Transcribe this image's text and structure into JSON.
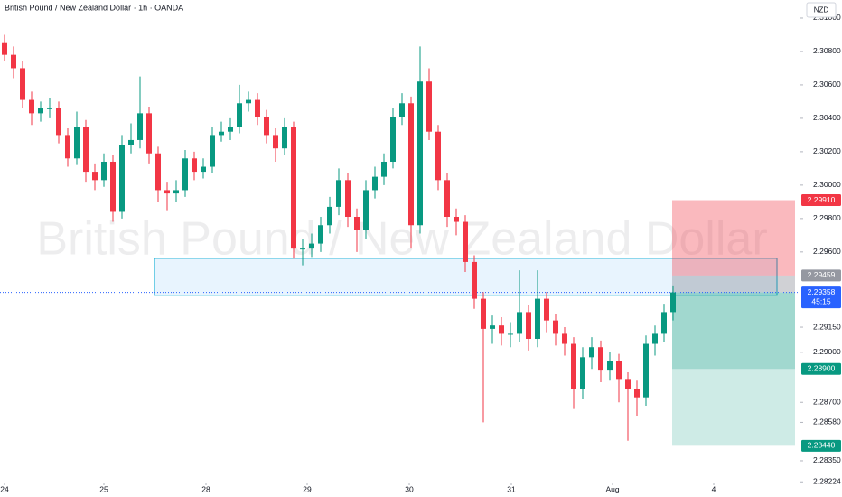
{
  "chart_data": {
    "type": "candlestick",
    "title": "British Pound / New Zealand Dollar · 1h · OANDA",
    "watermark": "British Pound / New Zealand Dollar",
    "currency": "NZD",
    "up_color": "#089981",
    "down_color": "#f23645",
    "open": [
      2.3085,
      2.3078,
      2.307,
      2.3051,
      2.3043,
      2.3046,
      2.3046,
      2.303,
      2.3016,
      2.3035,
      2.3008,
      2.3003,
      2.3014,
      2.2984,
      2.3024,
      2.3027,
      2.3043,
      2.3019,
      2.2997,
      2.2995,
      2.2997,
      2.3016,
      2.3008,
      2.3011,
      2.303,
      2.3032,
      2.3035,
      2.3049,
      2.3051,
      2.3041,
      2.303,
      2.3022,
      2.3035,
      2.2962,
      2.2962,
      2.2965,
      2.2976,
      2.2987,
      2.3003,
      2.2981,
      2.2973,
      2.2997,
      2.3005,
      2.3014,
      2.3041,
      2.3049,
      2.2976,
      2.3062,
      2.3032,
      2.3003,
      2.2981,
      2.2978,
      2.2954,
      2.2932,
      2.2914,
      2.2916,
      2.2911,
      2.2911,
      2.2924,
      2.2908,
      2.2932,
      2.2919,
      2.2911,
      2.2905,
      2.2878,
      2.2897,
      2.2903,
      2.2889,
      2.2895,
      2.2884,
      2.2878,
      2.2873,
      2.2905,
      2.2911,
      2.2924
    ],
    "high": [
      2.309,
      2.3083,
      2.3074,
      2.3056,
      2.305,
      2.3052,
      2.305,
      2.3034,
      2.3044,
      2.3039,
      2.3013,
      2.3019,
      2.3018,
      2.303,
      2.3037,
      2.3065,
      2.3047,
      2.3023,
      2.3002,
      2.3003,
      2.3021,
      2.302,
      2.3016,
      2.3035,
      2.3038,
      2.304,
      2.306,
      2.3056,
      2.3055,
      2.3045,
      2.3034,
      2.304,
      2.3038,
      2.2968,
      2.2971,
      2.2981,
      2.2993,
      2.301,
      2.3007,
      2.2986,
      2.3003,
      2.3011,
      2.3019,
      2.3046,
      2.3055,
      2.3053,
      2.3083,
      2.307,
      2.3036,
      2.3007,
      2.2986,
      2.2982,
      2.2958,
      2.2936,
      2.2922,
      2.2921,
      2.2918,
      2.2949,
      2.2928,
      2.2949,
      2.2936,
      2.2923,
      2.2915,
      2.2909,
      2.2903,
      2.2909,
      2.2907,
      2.29,
      2.2899,
      2.2888,
      2.2883,
      2.291,
      2.2916,
      2.2929,
      2.294
    ],
    "low": [
      2.3074,
      2.3064,
      2.3046,
      2.3036,
      2.3038,
      2.304,
      2.3025,
      2.3011,
      2.3012,
      2.3002,
      2.2997,
      2.2999,
      2.2978,
      2.298,
      2.3019,
      2.3022,
      2.3013,
      2.299,
      2.2985,
      2.299,
      2.2993,
      2.3003,
      2.3004,
      2.3007,
      2.3026,
      2.3027,
      2.3031,
      2.3044,
      2.3036,
      2.3025,
      2.3014,
      2.3018,
      2.2956,
      2.2952,
      2.2957,
      2.296,
      2.2971,
      2.2982,
      2.2975,
      2.296,
      2.2968,
      2.2992,
      2.3,
      2.301,
      2.3036,
      2.2962,
      2.2971,
      2.3027,
      2.2997,
      2.2975,
      2.297,
      2.2948,
      2.2926,
      2.2858,
      2.2905,
      2.2904,
      2.2903,
      2.2906,
      2.2901,
      2.2903,
      2.2912,
      2.2904,
      2.2898,
      2.2866,
      2.2872,
      2.289,
      2.2882,
      2.2883,
      2.287,
      2.2847,
      2.2862,
      2.2868,
      2.2898,
      2.2906,
      2.2919
    ],
    "close": [
      2.3078,
      2.307,
      2.3051,
      2.3043,
      2.3046,
      2.3046,
      2.303,
      2.3016,
      2.3035,
      2.3008,
      2.3003,
      2.3014,
      2.2984,
      2.3024,
      2.3027,
      2.3043,
      2.3019,
      2.2997,
      2.2995,
      2.2997,
      2.3016,
      2.3008,
      2.3011,
      2.303,
      2.3032,
      2.3035,
      2.3049,
      2.3051,
      2.3041,
      2.303,
      2.3022,
      2.3035,
      2.2962,
      2.2962,
      2.2965,
      2.2976,
      2.2987,
      2.3003,
      2.2981,
      2.2973,
      2.2997,
      2.3005,
      2.3014,
      2.3041,
      2.3049,
      2.2976,
      2.3062,
      2.3032,
      2.3003,
      2.2981,
      2.2978,
      2.2954,
      2.2932,
      2.2914,
      2.2916,
      2.2911,
      2.2911,
      2.2924,
      2.2908,
      2.2932,
      2.2919,
      2.2911,
      2.2905,
      2.2878,
      2.2897,
      2.2903,
      2.2889,
      2.2895,
      2.2884,
      2.2878,
      2.2873,
      2.2905,
      2.2911,
      2.2924,
      2.29358
    ],
    "xlim": [
      -0.5,
      88
    ],
    "xticks": [
      {
        "value": 0,
        "label": "24"
      },
      {
        "value": 11,
        "label": "25"
      },
      {
        "value": 22.3,
        "label": "28"
      },
      {
        "value": 33.5,
        "label": "29"
      },
      {
        "value": 44.8,
        "label": "30"
      },
      {
        "value": 56.1,
        "label": "31"
      },
      {
        "value": 67.3,
        "label": "Aug"
      },
      {
        "value": 78.5,
        "label": "4"
      }
    ],
    "ylim": [
      2.2822,
      2.31108
    ],
    "yticks": [
      {
        "value": 2.31,
        "label": "2.31000"
      },
      {
        "value": 2.308,
        "label": "2.30800"
      },
      {
        "value": 2.306,
        "label": "2.30600"
      },
      {
        "value": 2.304,
        "label": "2.30400"
      },
      {
        "value": 2.302,
        "label": "2.30200"
      },
      {
        "value": 2.3,
        "label": "2.30000"
      },
      {
        "value": 2.298,
        "label": "2.29800"
      },
      {
        "value": 2.296,
        "label": "2.29600"
      },
      {
        "value": 2.2915,
        "label": "2.29150"
      },
      {
        "value": 2.29,
        "label": "2.29000"
      },
      {
        "value": 2.287,
        "label": "2.28700"
      },
      {
        "value": 2.2858,
        "label": "2.28580"
      },
      {
        "value": 2.2835,
        "label": "2.28350"
      },
      {
        "value": 2.28224,
        "label": "2.28224"
      }
    ],
    "zone": {
      "x": [
        16.6,
        85.5
      ],
      "y": [
        2.29341,
        2.29562
      ],
      "color": "#22b5d6"
    },
    "position": {
      "x": [
        73.9,
        87.5
      ],
      "stop": 2.2991,
      "entry": 2.29459,
      "target": 2.2844
    },
    "price_labels": [
      {
        "value": 2.2991,
        "label": "2.29910",
        "color": "#f23645"
      },
      {
        "value": 2.29459,
        "label": "2.29459",
        "color": "#9598a1"
      },
      {
        "value": 2.29358,
        "label": "2.29358",
        "sub": "45:15",
        "color": "#2962ff"
      },
      {
        "value": 2.289,
        "label": "2.28900",
        "color": "#089981"
      },
      {
        "value": 2.2844,
        "label": "2.28440",
        "color": "#089981"
      }
    ]
  }
}
